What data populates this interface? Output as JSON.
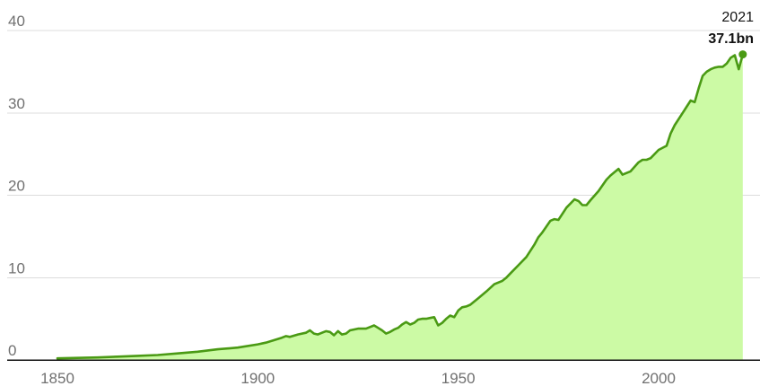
{
  "chart_data": {
    "type": "area",
    "title": "",
    "xlabel": "",
    "ylabel": "",
    "xlim": [
      1840,
      2025
    ],
    "ylim": [
      0,
      40
    ],
    "yticks": [
      0,
      10,
      20,
      30,
      40
    ],
    "xticks": [
      1850,
      1900,
      1950,
      2000
    ],
    "grid": true,
    "legend": "none",
    "colors": {
      "line": "#4a9a14",
      "fill": "#ccfaa5",
      "axis": "#121212",
      "grid": "#dcdcdc"
    },
    "annotation": {
      "year_label": "2021",
      "value_label": "37.1bn",
      "x": 2021,
      "y": 37.1
    },
    "series": [
      {
        "x": [
          1850,
          1855,
          1860,
          1865,
          1870,
          1875,
          1880,
          1885,
          1890,
          1895,
          1900,
          1902,
          1904,
          1906,
          1907,
          1908,
          1910,
          1912,
          1913,
          1914,
          1915,
          1916,
          1917,
          1918,
          1919,
          1920,
          1921,
          1922,
          1923,
          1925,
          1927,
          1928,
          1929,
          1930,
          1931,
          1932,
          1933,
          1934,
          1935,
          1936,
          1937,
          1938,
          1939,
          1940,
          1941,
          1942,
          1943,
          1944,
          1945,
          1946,
          1947,
          1948,
          1949,
          1950,
          1951,
          1952,
          1953,
          1955,
          1957,
          1959,
          1961,
          1962,
          1963,
          1965,
          1967,
          1969,
          1970,
          1971,
          1973,
          1974,
          1975,
          1977,
          1979,
          1980,
          1981,
          1982,
          1983,
          1985,
          1987,
          1988,
          1989,
          1990,
          1991,
          1992,
          1993,
          1995,
          1996,
          1997,
          1998,
          2000,
          2002,
          2003,
          2004,
          2006,
          2008,
          2009,
          2010,
          2011,
          2012,
          2013,
          2014,
          2015,
          2016,
          2017,
          2018,
          2019,
          2020,
          2021
        ],
        "y": [
          0.2,
          0.25,
          0.3,
          0.4,
          0.5,
          0.6,
          0.8,
          1.0,
          1.3,
          1.5,
          1.9,
          2.1,
          2.4,
          2.7,
          2.9,
          2.8,
          3.1,
          3.3,
          3.6,
          3.2,
          3.1,
          3.3,
          3.5,
          3.4,
          3.0,
          3.5,
          3.1,
          3.2,
          3.6,
          3.8,
          3.8,
          4.0,
          4.2,
          3.9,
          3.6,
          3.2,
          3.4,
          3.7,
          3.9,
          4.3,
          4.6,
          4.3,
          4.5,
          4.9,
          5.0,
          5.0,
          5.1,
          5.2,
          4.2,
          4.5,
          5.0,
          5.4,
          5.2,
          6.0,
          6.4,
          6.5,
          6.7,
          7.5,
          8.3,
          9.2,
          9.6,
          10.0,
          10.5,
          11.5,
          12.5,
          14.0,
          14.9,
          15.5,
          16.9,
          17.1,
          17.0,
          18.5,
          19.5,
          19.3,
          18.8,
          18.8,
          19.4,
          20.5,
          21.9,
          22.4,
          22.8,
          23.2,
          22.5,
          22.7,
          22.9,
          24.0,
          24.3,
          24.3,
          24.5,
          25.5,
          26.0,
          27.5,
          28.5,
          30.0,
          31.5,
          31.3,
          33.0,
          34.5,
          35.0,
          35.3,
          35.5,
          35.6,
          35.6,
          36.0,
          36.7,
          37.0,
          35.3,
          37.1
        ]
      }
    ]
  }
}
